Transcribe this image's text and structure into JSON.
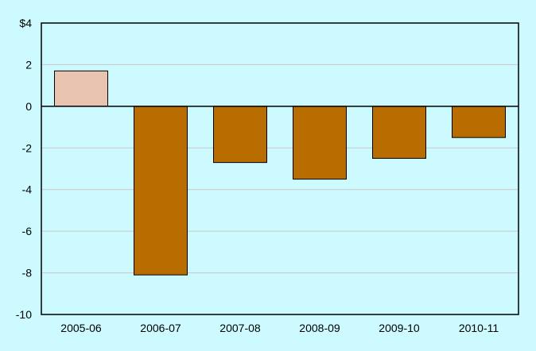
{
  "chart_data": {
    "type": "bar",
    "categories": [
      "2005-06",
      "2006-07",
      "2007-08",
      "2008-09",
      "2009-10",
      "2010-11"
    ],
    "values": [
      1.7,
      -8.1,
      -2.7,
      -3.5,
      -2.5,
      -1.5
    ],
    "ylim": [
      -10,
      4
    ],
    "y_ticks": [
      -10,
      -8,
      -6,
      -4,
      -2,
      0,
      2,
      4
    ],
    "y_tick_labels": [
      "-10",
      "-8",
      "-6",
      "-4",
      "-2",
      "0",
      "2",
      "$4"
    ],
    "grid": true,
    "title": "",
    "xlabel": "",
    "ylabel": "",
    "colors": {
      "background": "#ccfaff",
      "plot_background": "#ccfaff",
      "positive_bar": "#e8c4b0",
      "negative_bar": "#b96d00",
      "gridline": "#c8c8c8",
      "axis": "#000000"
    }
  }
}
